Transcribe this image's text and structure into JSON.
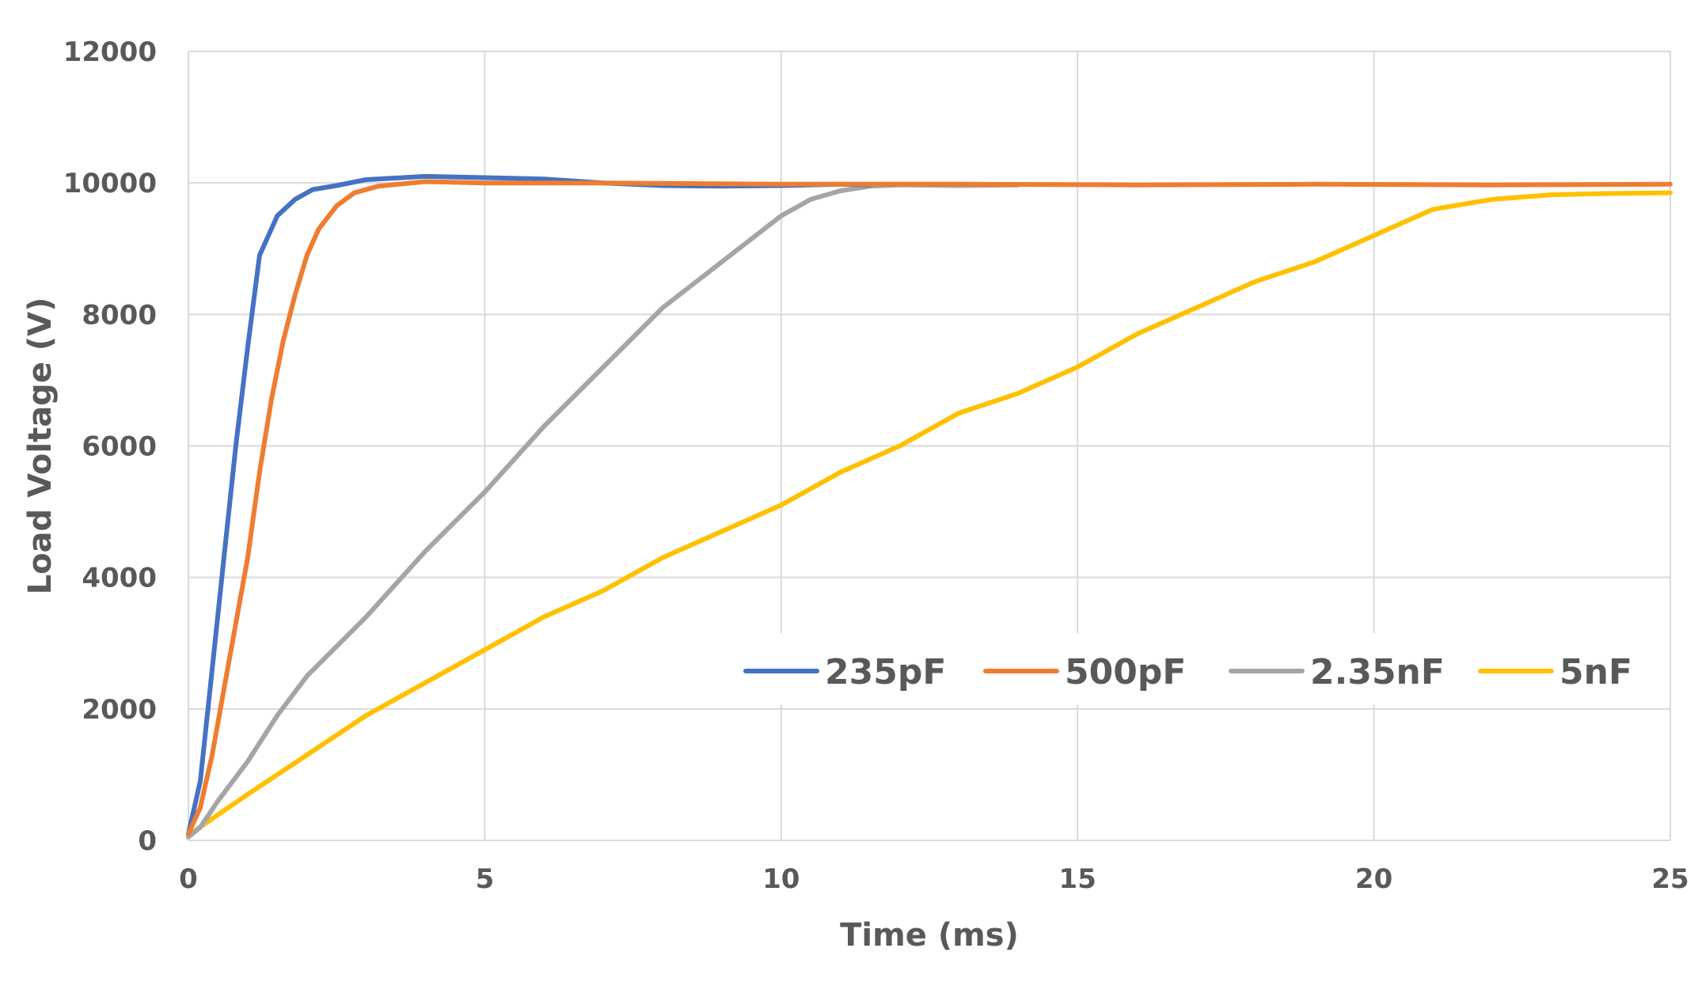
{
  "chart_data": {
    "type": "line",
    "title": "",
    "xlabel": "Time (ms)",
    "ylabel": "Load Voltage (V)",
    "xlim": [
      0,
      25
    ],
    "ylim": [
      0,
      12000
    ],
    "xticks": [
      0,
      5,
      10,
      15,
      20,
      25
    ],
    "yticks": [
      0,
      2000,
      4000,
      6000,
      8000,
      10000,
      12000
    ],
    "grid": true,
    "legend_position": "bottom-right",
    "series": [
      {
        "name": "235pF",
        "color": "#4472C4",
        "x": [
          0,
          0.2,
          0.4,
          0.6,
          0.8,
          1.0,
          1.2,
          1.5,
          1.8,
          2.1,
          2.5,
          3.0,
          4.0,
          5.0,
          6.0,
          7.0,
          8.0,
          9.0,
          10.0,
          11.0,
          11.5
        ],
        "y": [
          100,
          900,
          2600,
          4300,
          6000,
          7500,
          8900,
          9500,
          9750,
          9900,
          9960,
          10050,
          10100,
          10080,
          10060,
          10000,
          9960,
          9950,
          9960,
          9980,
          9970
        ]
      },
      {
        "name": "500pF",
        "color": "#ED7D31",
        "x": [
          0,
          0.2,
          0.4,
          0.6,
          0.8,
          1.0,
          1.2,
          1.4,
          1.6,
          1.8,
          2.0,
          2.2,
          2.5,
          2.8,
          3.2,
          4.0,
          5.0,
          7.0,
          10.0,
          13.0,
          16.0,
          19.0,
          22.0,
          25.0
        ],
        "y": [
          100,
          500,
          1300,
          2300,
          3300,
          4300,
          5600,
          6700,
          7600,
          8300,
          8900,
          9300,
          9650,
          9850,
          9950,
          10020,
          10000,
          10000,
          9980,
          9980,
          9970,
          9980,
          9970,
          9980
        ]
      },
      {
        "name": "2.35nF",
        "color": "#A5A5A5",
        "x": [
          0,
          0.2,
          0.5,
          1.0,
          1.5,
          2.0,
          3.0,
          4.0,
          5.0,
          6.0,
          7.0,
          8.0,
          9.0,
          10.0,
          10.5,
          11.0,
          11.5,
          12.0,
          13.0,
          14.0
        ],
        "y": [
          50,
          200,
          600,
          1200,
          1900,
          2500,
          3400,
          4400,
          5300,
          6300,
          7200,
          8100,
          8800,
          9500,
          9750,
          9880,
          9950,
          9970,
          9960,
          9970
        ]
      },
      {
        "name": "5nF",
        "color": "#FFC000",
        "x": [
          0,
          1.0,
          2.0,
          3.0,
          4.0,
          5.0,
          6.0,
          7.0,
          8.0,
          9.0,
          10.0,
          11.0,
          12.0,
          13.0,
          14.0,
          15.0,
          16.0,
          17.0,
          18.0,
          19.0,
          20.0,
          21.0,
          22.0,
          23.0,
          24.0,
          25.0
        ],
        "y": [
          80,
          700,
          1300,
          1900,
          2400,
          2900,
          3400,
          3800,
          4300,
          4700,
          5100,
          5600,
          6000,
          6500,
          6800,
          7200,
          7700,
          8100,
          8500,
          8800,
          9200,
          9600,
          9750,
          9820,
          9840,
          9850
        ]
      }
    ]
  }
}
